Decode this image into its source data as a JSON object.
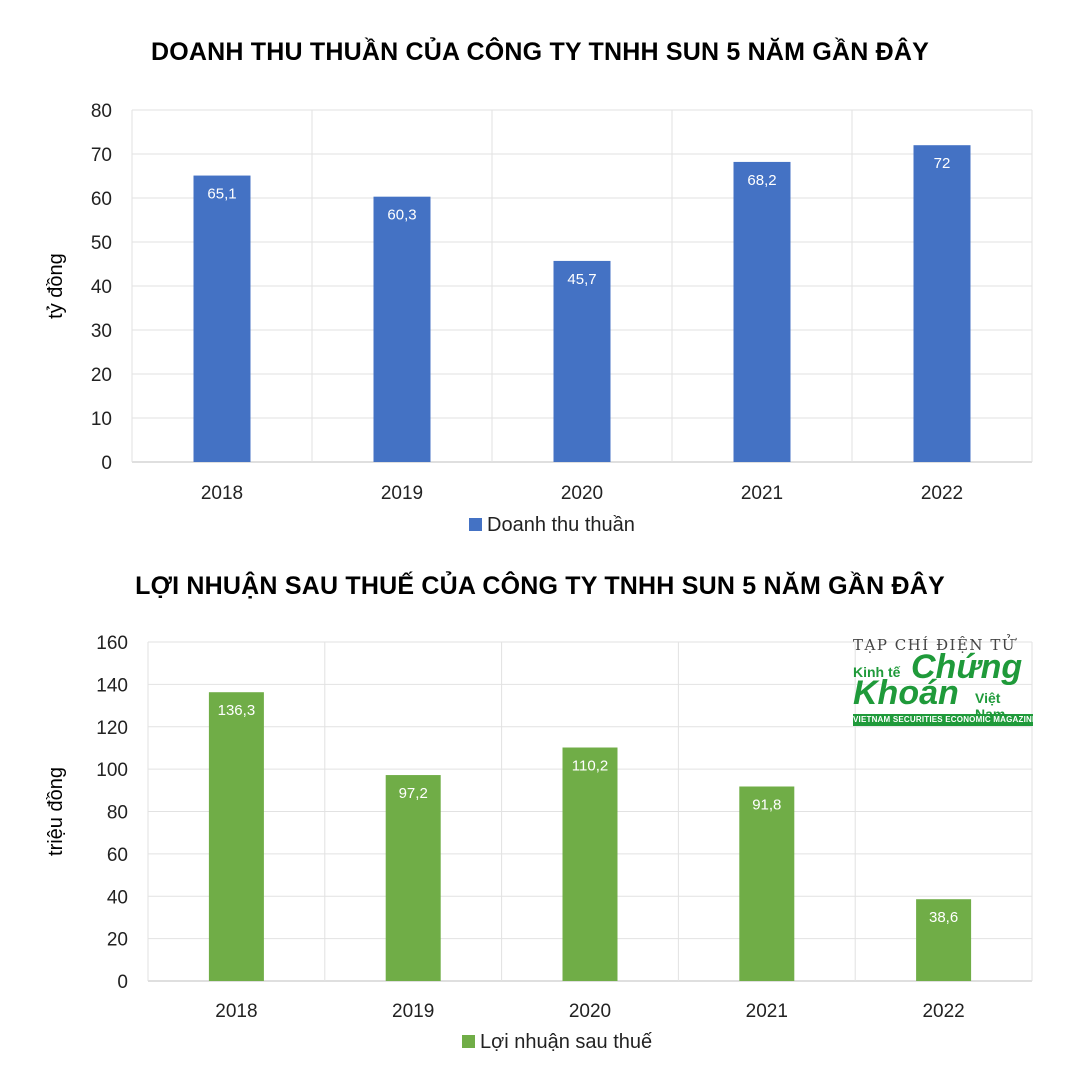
{
  "chart_data": [
    {
      "type": "bar",
      "title": "DOANH THU THUẦN CỦA CÔNG TY TNHH SUN 5 NĂM GẦN ĐÂY",
      "ylabel": "tỷ đồng",
      "xlabel": "",
      "categories": [
        "2018",
        "2019",
        "2020",
        "2021",
        "2022"
      ],
      "series": [
        {
          "name": "Doanh thu thuần",
          "values": [
            65.1,
            60.3,
            45.7,
            68.2,
            72
          ],
          "labels": [
            "65,1",
            "60,3",
            "45,7",
            "68,2",
            "72"
          ]
        }
      ],
      "ylim": [
        0,
        80
      ],
      "yticks": [
        "0",
        "10",
        "20",
        "30",
        "40",
        "50",
        "60",
        "70",
        "80"
      ],
      "grid": true,
      "legend_position": "bottom",
      "color": "#4472C4"
    },
    {
      "type": "bar",
      "title": "LỢI NHUẬN SAU THUẾ CỦA CÔNG TY TNHH SUN 5 NĂM GẦN ĐÂY",
      "ylabel": "triệu đồng",
      "xlabel": "",
      "categories": [
        "2018",
        "2019",
        "2020",
        "2021",
        "2022"
      ],
      "series": [
        {
          "name": "Lợi nhuận sau thuế",
          "values": [
            136.3,
            97.2,
            110.2,
            91.8,
            38.6
          ],
          "labels": [
            "136,3",
            "97,2",
            "110,2",
            "91,8",
            "38,6"
          ]
        }
      ],
      "ylim": [
        0,
        160
      ],
      "yticks": [
        "0",
        "20",
        "40",
        "60",
        "80",
        "100",
        "120",
        "140",
        "160"
      ],
      "grid": true,
      "legend_position": "bottom",
      "color": "#70AD47"
    }
  ],
  "logo": {
    "line1": "TẠP CHÍ ĐIỆN TỬ",
    "word_kinhte": "Kinh tế",
    "word_chung": "Chứng",
    "word_khoan": "Khoán",
    "word_vietnam": "Việt Nam",
    "tagline": "VIETNAM SECURITIES ECONOMIC MAGAZINE"
  }
}
